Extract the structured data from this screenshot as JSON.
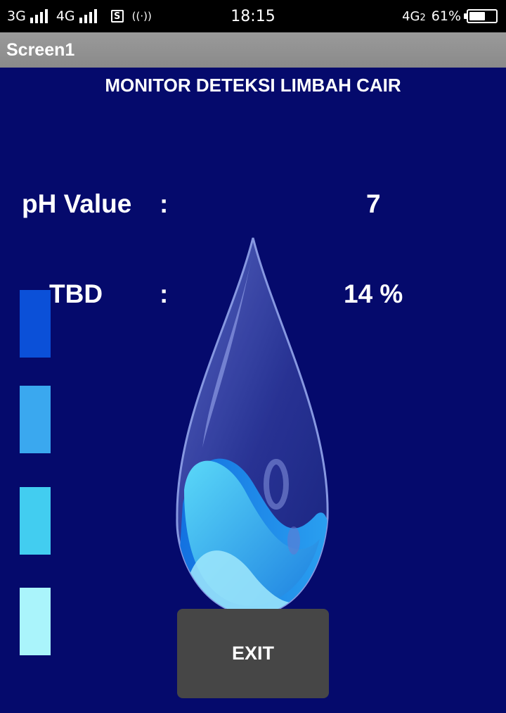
{
  "status_bar": {
    "sim1": "3G",
    "sim2": "4G",
    "time": "18:15",
    "network": "4G",
    "network_sub": "2",
    "battery_text": "61%",
    "battery_fraction": 0.61
  },
  "app": {
    "screen_title": "Screen1",
    "heading": "MONITOR DETEKSI LIMBAH CAIR",
    "readings": [
      {
        "label": "pH Value",
        "separator": ":",
        "value": "7"
      },
      {
        "label": "TBD",
        "separator": ":",
        "value": "14 %"
      }
    ],
    "level_bar_colors": [
      "#0b50d8",
      "#3aa8ef",
      "#42cdf0",
      "#aaf4fb"
    ],
    "exit_label": "EXIT"
  },
  "colors": {
    "background": "#050a6c",
    "title_bar": "#929292",
    "button": "#464646"
  }
}
